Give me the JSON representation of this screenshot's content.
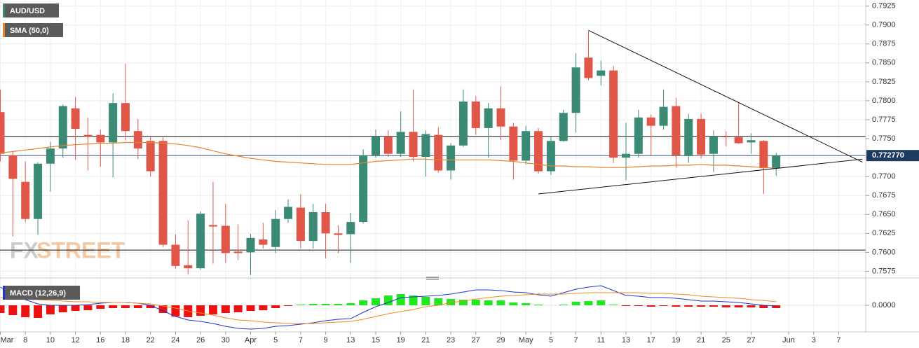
{
  "chart_data": {
    "type": "candlestick",
    "categories": [
      "Mar",
      null,
      "8",
      null,
      "10",
      null,
      "12",
      null,
      "16",
      null,
      "18",
      null,
      "22",
      null,
      "24",
      null,
      "26",
      null,
      "30",
      null,
      "Apr",
      null,
      "5",
      null,
      "7",
      null,
      "9",
      null,
      "13",
      null,
      "15",
      null,
      "19",
      null,
      "21",
      null,
      "23",
      null,
      "27",
      null,
      "29",
      null,
      "May",
      null,
      "5",
      null,
      "7",
      null,
      "11",
      null,
      "13",
      null,
      "17",
      null,
      "19",
      null,
      "21",
      null,
      "25",
      null,
      "27",
      null,
      null,
      "Jun",
      null,
      "3",
      null,
      "7",
      null
    ],
    "series": [
      {
        "name": "AUD/USD",
        "color": "#3b8a76",
        "up_color": "#3b8a76",
        "down_color": "#e0574a",
        "open": [
          0.7785,
          0.7728,
          0.7693,
          0.7644,
          0.7717,
          0.7737,
          0.779,
          0.7755,
          0.7755,
          0.7745,
          0.7797,
          0.776,
          0.7747,
          0.7747,
          0.761,
          0.7583,
          0.7579,
          0.7636,
          0.7635,
          0.7601,
          0.76,
          0.7617,
          0.7607,
          0.7644,
          0.7659,
          0.7615,
          0.7653,
          0.7625,
          0.7624,
          0.764,
          0.7728,
          0.7753,
          0.773,
          0.7759,
          0.7726,
          0.7755,
          0.7708,
          0.7741,
          0.7799,
          0.7764,
          0.779,
          0.7766,
          0.7721,
          0.776,
          0.7707,
          0.7747,
          0.7784,
          0.7857,
          0.7833,
          0.784,
          0.7725,
          0.773,
          0.7778,
          0.7767,
          0.7793,
          0.7727,
          0.7776,
          0.773,
          0.7753,
          0.7752,
          0.7745,
          0.7747,
          0.7711,
          null,
          null,
          null,
          null,
          null,
          null
        ],
        "high": [
          0.7815,
          0.7733,
          0.772,
          0.7719,
          0.7746,
          0.7795,
          0.7805,
          0.7778,
          0.7762,
          0.781,
          0.7849,
          0.7776,
          0.7754,
          0.7752,
          0.7624,
          0.7642,
          0.7654,
          0.7693,
          0.7664,
          0.7637,
          0.7624,
          0.7639,
          0.7656,
          0.767,
          0.7677,
          0.7664,
          0.7664,
          0.7636,
          0.7652,
          0.7736,
          0.7762,
          0.7761,
          0.7786,
          0.7815,
          0.7761,
          0.7765,
          0.7744,
          0.7815,
          0.7806,
          0.7797,
          0.7819,
          0.7771,
          0.7767,
          0.7764,
          0.7753,
          0.7788,
          0.7863,
          0.7892,
          0.7853,
          0.7846,
          0.7771,
          0.7788,
          0.7782,
          0.7815,
          0.7804,
          0.7783,
          0.7783,
          0.7761,
          0.776,
          0.7798,
          0.7757,
          0.7748,
          0.7731,
          null,
          null,
          null,
          null,
          null,
          null
        ],
        "low": [
          0.772,
          0.7621,
          0.764,
          0.7623,
          0.768,
          0.7725,
          0.7722,
          0.7708,
          0.7713,
          0.7699,
          0.7748,
          0.7723,
          0.77,
          0.7607,
          0.7579,
          0.7571,
          0.7577,
          0.7585,
          0.7586,
          0.759,
          0.757,
          0.7605,
          0.7599,
          0.7639,
          0.7605,
          0.7605,
          0.7592,
          0.7599,
          0.7586,
          0.7638,
          0.7725,
          0.7726,
          0.7726,
          0.772,
          0.77,
          0.7705,
          0.7696,
          0.7739,
          0.7755,
          0.7725,
          0.7748,
          0.7696,
          0.7716,
          0.7704,
          0.7702,
          0.7746,
          0.7758,
          0.7827,
          0.782,
          0.7718,
          0.7695,
          0.7725,
          0.7728,
          0.7762,
          0.7712,
          0.7718,
          0.7724,
          0.7706,
          0.774,
          0.7743,
          0.773,
          0.7677,
          0.7701,
          null,
          null,
          null,
          null,
          null,
          null
        ],
        "close": [
          0.773,
          0.7697,
          0.7644,
          0.7717,
          0.7737,
          0.7793,
          0.7763,
          0.7753,
          0.7745,
          0.7797,
          0.776,
          0.7737,
          0.7707,
          0.761,
          0.7582,
          0.7579,
          0.7651,
          0.7634,
          0.7599,
          0.7599,
          0.7619,
          0.761,
          0.7644,
          0.766,
          0.7615,
          0.7653,
          0.7625,
          0.7623,
          0.764,
          0.7728,
          0.7753,
          0.773,
          0.7759,
          0.7726,
          0.7756,
          0.7708,
          0.7741,
          0.7799,
          0.7764,
          0.779,
          0.7766,
          0.7721,
          0.776,
          0.7707,
          0.7747,
          0.7784,
          0.7844,
          0.783,
          0.784,
          0.7725,
          0.773,
          0.7778,
          0.7767,
          0.7792,
          0.7728,
          0.7776,
          0.7729,
          0.7753,
          0.7752,
          0.7744,
          0.7748,
          0.7711,
          0.7728,
          null,
          null,
          null,
          null,
          null,
          null
        ]
      }
    ],
    "sma": {
      "name": "SMA (50,0)",
      "color": "#e7832f",
      "values": [
        0.7731,
        0.7733,
        0.7735,
        0.7737,
        0.7739,
        0.7741,
        0.7742,
        0.7743,
        0.7744,
        0.7744,
        0.7745,
        0.7745,
        0.7745,
        0.7744,
        0.7743,
        0.7741,
        0.7738,
        0.7734,
        0.773,
        0.7727,
        0.7724,
        0.7722,
        0.772,
        0.7719,
        0.7718,
        0.7717,
        0.7716,
        0.7716,
        0.7716,
        0.7718,
        0.772,
        0.7721,
        0.7722,
        0.7723,
        0.7723,
        0.7722,
        0.7722,
        0.7722,
        0.7722,
        0.7722,
        0.7721,
        0.772,
        0.7718,
        0.7716,
        0.7714,
        0.7714,
        0.7713,
        0.7713,
        0.7712,
        0.7712,
        0.7712,
        0.7713,
        0.7714,
        0.7714,
        0.7715,
        0.7715,
        0.7716,
        0.7715,
        0.7715,
        0.7714,
        0.7713,
        0.7712,
        0.7711,
        null,
        null,
        null,
        null,
        null,
        null
      ]
    },
    "hlines": [
      0.7753,
      0.7603
    ],
    "trendlines": [
      {
        "x": [
          47,
          68.9
        ],
        "y": [
          0.7893,
          0.7719
        ]
      },
      {
        "x": [
          43,
          68.9
        ],
        "y": [
          0.7677,
          0.7723
        ]
      }
    ],
    "last_price": {
      "value": 0.77277,
      "label": "0.772770"
    },
    "ylim": [
      0.7568,
      0.7933
    ],
    "yticks": [
      0.7575,
      {
        "value": 0.76,
        "label": "0.7600"
      },
      0.7625,
      {
        "value": 0.765,
        "label": "0.7650"
      },
      0.7675,
      {
        "value": 0.77,
        "label": "0.7700"
      },
      0.7725,
      {
        "value": 0.775,
        "label": "0.7750"
      },
      0.7775,
      {
        "value": 0.78,
        "label": "0.7800"
      },
      0.7825,
      {
        "value": 0.785,
        "label": "0.7850"
      },
      0.7875,
      {
        "value": 0.79,
        "label": "0.7900"
      },
      0.7925
    ],
    "grid": true,
    "watermark": [
      "FX",
      "STREET"
    ],
    "macd": {
      "name": "MACD (12,26,9)",
      "color": "#2233cc",
      "ylim": [
        -0.0034,
        0.0033
      ],
      "yticks": [
        {
          "value": 0,
          "label": "0.0000"
        }
      ],
      "macd": {
        "color": "#2233cc",
        "values": [
          0.0026,
          0.0016,
          0.0008,
          0.0002,
          0,
          0,
          0,
          0.0001,
          0.0003,
          0.0004,
          0.0004,
          0.0003,
          0,
          -0.0008,
          -0.0016,
          -0.0021,
          -0.0023,
          -0.0026,
          -0.003,
          -0.0033,
          -0.0034,
          -0.0033,
          -0.003,
          -0.0029,
          -0.0027,
          -0.0025,
          -0.0022,
          -0.002,
          -0.0019,
          -0.001,
          -0.0002,
          0.0004,
          0.0011,
          0.0012,
          0.0013,
          0.0014,
          0.0016,
          0.0019,
          0.0022,
          0.0022,
          0.0021,
          0.0019,
          0.0018,
          0.0015,
          0.0013,
          0.0018,
          0.0023,
          0.0026,
          0.0028,
          0.0021,
          0.0014,
          0.0013,
          0.0011,
          0.0011,
          0.001,
          0.0008,
          0.0006,
          0.0006,
          0.0005,
          0.0004,
          0.0002,
          0,
          -0.0001,
          null,
          null,
          null,
          null,
          null,
          null
        ]
      },
      "signal": {
        "color": "#f08a24",
        "values": [
          0.0011,
          0.001,
          0.0009,
          0.0008,
          0.0007,
          0.0006,
          0.0005,
          0.0005,
          0.0004,
          0.0004,
          0.0004,
          0.0003,
          0.0002,
          -0.0001,
          -0.0004,
          -0.0008,
          -0.0011,
          -0.0014,
          -0.0018,
          -0.0021,
          -0.0022,
          -0.0024,
          -0.0025,
          -0.0026,
          -0.0026,
          -0.0026,
          -0.0025,
          -0.0024,
          -0.0023,
          -0.002,
          -0.0016,
          -0.0012,
          -0.0009,
          -0.0006,
          -0.0002,
          0,
          0.0004,
          0.0006,
          0.0009,
          0.0011,
          0.0013,
          0.0014,
          0.0015,
          0.0016,
          0.0016,
          0.0016,
          0.0017,
          0.0018,
          0.0018,
          0.0018,
          0.0018,
          0.0018,
          0.0017,
          0.0017,
          0.0016,
          0.0015,
          0.0013,
          0.0012,
          0.0011,
          0.001,
          0.0008,
          0.0007,
          0.0005,
          null,
          null,
          null,
          null,
          null,
          null
        ]
      },
      "histogram": {
        "up_color": "#22e622",
        "down_color": "#ee1111",
        "values": [
          -0.0011,
          -0.0014,
          -0.0017,
          -0.0018,
          -0.0013,
          -0.001,
          -0.0008,
          -0.0007,
          -0.0005,
          -0.0004,
          -0.0004,
          -0.0004,
          -0.0004,
          -0.0011,
          -0.0016,
          -0.0017,
          -0.0015,
          -0.0013,
          -0.0011,
          -0.001,
          -0.0008,
          -0.0007,
          -0.0004,
          -0.0001,
          0.0001,
          0.0002,
          0.0002,
          0.0002,
          0.0003,
          0.0007,
          0.001,
          0.0014,
          0.0016,
          0.0014,
          0.0012,
          0.001,
          0.0009,
          0.0008,
          0.0008,
          0.0007,
          0.0007,
          0.0004,
          0.0003,
          0.0001,
          0,
          0.0001,
          0.0005,
          0.0006,
          0.0007,
          0.0001,
          -0.0001,
          -0.0001,
          -0.0002,
          -0.0001,
          -0.0002,
          -0.0002,
          -0.0002,
          -0.0002,
          -0.0003,
          -0.0003,
          -0.0003,
          -0.0004,
          -0.0004,
          null,
          null,
          null,
          null,
          null,
          null
        ]
      }
    }
  }
}
